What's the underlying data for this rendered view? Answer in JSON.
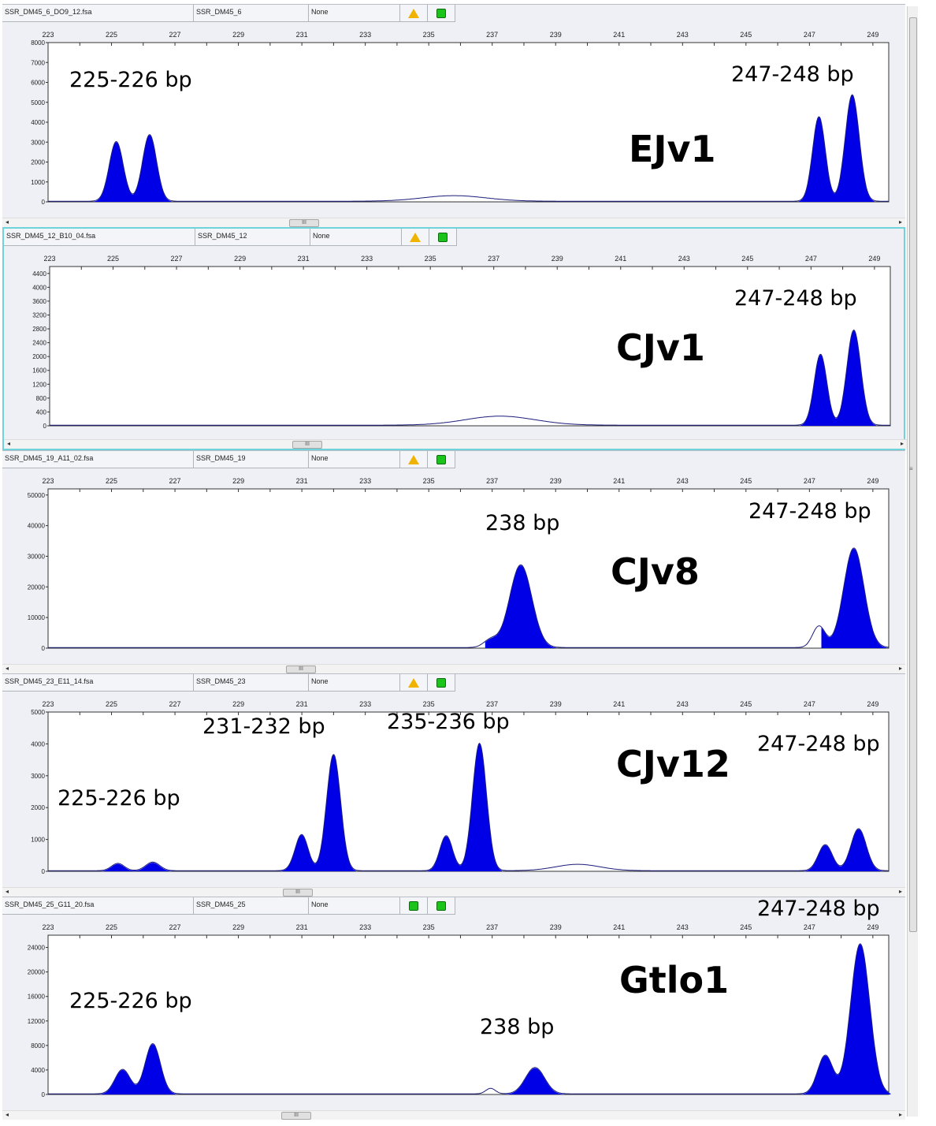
{
  "x_ticks": [
    "223",
    "225",
    "227",
    "229",
    "231",
    "233",
    "235",
    "237",
    "239",
    "241",
    "243",
    "245",
    "247",
    "249"
  ],
  "panels": [
    {
      "file": "SSR_DM45_6_DO9_12.fsa",
      "sample": "SSR_DM45_6",
      "status": "None",
      "flag1_icon": "warning-triangle-icon",
      "flag2_icon": "green-square-icon",
      "marker": "EJv1",
      "y_ticks": [
        "8000",
        "7000",
        "6000",
        "5000",
        "4000",
        "3000",
        "2000",
        "1000",
        "0"
      ],
      "chart_data": {
        "type": "area",
        "x_range": [
          223,
          249.5
        ],
        "ylim": [
          0,
          8000
        ],
        "peaks": [
          {
            "x": 225.15,
            "y": 3000,
            "w": 0.22,
            "filled": true
          },
          {
            "x": 226.2,
            "y": 3350,
            "w": 0.22,
            "filled": true
          },
          {
            "x": 235.8,
            "y": 280,
            "w": 1.0,
            "filled": false
          },
          {
            "x": 247.3,
            "y": 4250,
            "w": 0.2,
            "filled": true
          },
          {
            "x": 248.35,
            "y": 5350,
            "w": 0.22,
            "filled": true
          }
        ]
      },
      "annotations": [
        "225-226 bp",
        "247-248 bp"
      ]
    },
    {
      "file": "SSR_DM45_12_B10_04.fsa",
      "sample": "SSR_DM45_12",
      "status": "None",
      "flag1_icon": "warning-triangle-icon",
      "flag2_icon": "green-square-icon",
      "marker": "CJv1",
      "y_ticks": [
        "4400",
        "4000",
        "3600",
        "3200",
        "2800",
        "2400",
        "2000",
        "1600",
        "1200",
        "800",
        "400",
        "0"
      ],
      "chart_data": {
        "type": "area",
        "x_range": [
          223,
          249.5
        ],
        "ylim": [
          0,
          4600
        ],
        "peaks": [
          {
            "x": 237.2,
            "y": 260,
            "w": 1.1,
            "filled": false
          },
          {
            "x": 247.3,
            "y": 2050,
            "w": 0.2,
            "filled": true
          },
          {
            "x": 248.35,
            "y": 2750,
            "w": 0.22,
            "filled": true
          }
        ]
      },
      "annotations": [
        "247-248 bp"
      ]
    },
    {
      "file": "SSR_DM45_19_A11_02.fsa",
      "sample": "SSR_DM45_19",
      "status": "None",
      "flag1_icon": "warning-triangle-icon",
      "flag2_icon": "green-square-icon",
      "marker": "CJv8",
      "y_ticks": [
        "50000",
        "40000",
        "30000",
        "20000",
        "10000",
        "0"
      ],
      "chart_data": {
        "type": "area",
        "x_range": [
          223,
          249.5
        ],
        "ylim": [
          0,
          52000
        ],
        "peaks": [
          {
            "x": 236.95,
            "y": 2500,
            "w": 0.22,
            "filled": false
          },
          {
            "x": 237.9,
            "y": 27000,
            "w": 0.35,
            "filled": true
          },
          {
            "x": 247.3,
            "y": 7000,
            "w": 0.2,
            "filled": false
          },
          {
            "x": 248.4,
            "y": 32500,
            "w": 0.32,
            "filled": true
          }
        ]
      },
      "annotations": [
        "238 bp",
        "247-248 bp"
      ]
    },
    {
      "file": "SSR_DM45_23_E11_14.fsa",
      "sample": "SSR_DM45_23",
      "status": "None",
      "flag1_icon": "warning-triangle-icon",
      "flag2_icon": "green-square-icon",
      "marker": "CJv12",
      "y_ticks": [
        "5000",
        "4000",
        "3000",
        "2000",
        "1000",
        "0"
      ],
      "chart_data": {
        "type": "area",
        "x_range": [
          223,
          249.5
        ],
        "ylim": [
          0,
          5000
        ],
        "peaks": [
          {
            "x": 225.2,
            "y": 230,
            "w": 0.2,
            "filled": true
          },
          {
            "x": 226.3,
            "y": 270,
            "w": 0.22,
            "filled": true
          },
          {
            "x": 230.8,
            "y": 60,
            "w": 0.2,
            "filled": true
          },
          {
            "x": 231.0,
            "y": 1100,
            "w": 0.2,
            "filled": true
          },
          {
            "x": 232.0,
            "y": 3650,
            "w": 0.22,
            "filled": true
          },
          {
            "x": 235.55,
            "y": 1100,
            "w": 0.2,
            "filled": true
          },
          {
            "x": 236.6,
            "y": 4000,
            "w": 0.22,
            "filled": true
          },
          {
            "x": 239.7,
            "y": 200,
            "w": 0.7,
            "filled": false
          },
          {
            "x": 247.5,
            "y": 820,
            "w": 0.22,
            "filled": true
          },
          {
            "x": 248.55,
            "y": 1320,
            "w": 0.24,
            "filled": true
          }
        ]
      },
      "annotations": [
        "231-232 bp",
        "235-236 bp",
        "225-226 bp",
        "247-248 bp"
      ]
    },
    {
      "file": "SSR_DM45_25_G11_20.fsa",
      "sample": "SSR_DM45_25",
      "status": "None",
      "flag1_icon": "green-square-icon",
      "flag2_icon": "green-square-icon",
      "marker": "Gtlo1",
      "y_ticks": [
        "24000",
        "20000",
        "16000",
        "12000",
        "8000",
        "4000",
        "0"
      ],
      "chart_data": {
        "type": "area",
        "x_range": [
          223,
          249.5
        ],
        "ylim": [
          0,
          26000
        ],
        "peaks": [
          {
            "x": 225.35,
            "y": 4000,
            "w": 0.24,
            "filled": true
          },
          {
            "x": 226.3,
            "y": 8200,
            "w": 0.24,
            "filled": true
          },
          {
            "x": 236.95,
            "y": 900,
            "w": 0.15,
            "filled": false
          },
          {
            "x": 238.35,
            "y": 4300,
            "w": 0.3,
            "filled": true
          },
          {
            "x": 247.5,
            "y": 6300,
            "w": 0.24,
            "filled": true
          },
          {
            "x": 248.6,
            "y": 24500,
            "w": 0.3,
            "filled": true
          }
        ]
      },
      "annotations": [
        "247-248 bp",
        "225-226 bp",
        "238 bp"
      ]
    }
  ],
  "scroll_thumb_label": "III",
  "scroll_left_arrow": "◂",
  "scroll_right_arrow": "▸",
  "vscroll_grip": "≡",
  "colors": {
    "peak_fill": "#0000e6",
    "trace_line": "#1b1b7a",
    "plot_bg": "#ffffff",
    "panel_bg": "#eef0f5"
  }
}
